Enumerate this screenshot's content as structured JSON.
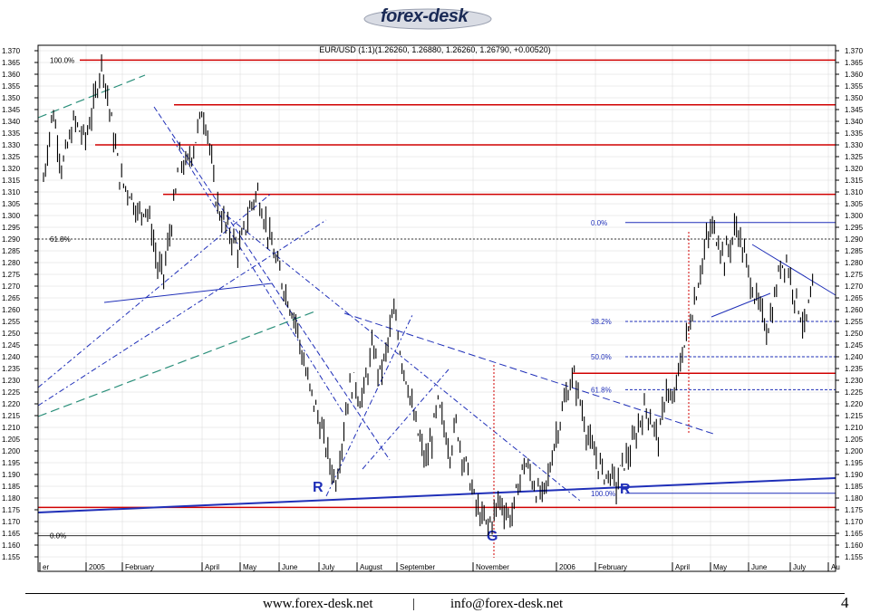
{
  "header": {
    "brand": "forex-desk"
  },
  "chart_data": {
    "type": "candlestick",
    "title": "EUR/USD (1:1)(1.26260, 1.26880, 1.26260, 1.26790, +0.00520)",
    "ylim": [
      1.155,
      1.37
    ],
    "yticks": [
      1.155,
      1.16,
      1.165,
      1.17,
      1.175,
      1.18,
      1.185,
      1.19,
      1.195,
      1.2,
      1.205,
      1.21,
      1.215,
      1.22,
      1.225,
      1.23,
      1.235,
      1.24,
      1.245,
      1.25,
      1.255,
      1.26,
      1.265,
      1.27,
      1.275,
      1.28,
      1.285,
      1.29,
      1.295,
      1.3,
      1.305,
      1.31,
      1.315,
      1.32,
      1.325,
      1.33,
      1.335,
      1.34,
      1.345,
      1.35,
      1.355,
      1.36,
      1.365,
      1.37
    ],
    "x_labels": [
      "er",
      "2005",
      "February",
      "April",
      "May",
      "June",
      "July",
      "August",
      "September",
      "November",
      "2006",
      "February",
      "April",
      "May",
      "June",
      "July",
      "Au"
    ],
    "price_path": [
      [
        0,
        1.315
      ],
      [
        6,
        1.345
      ],
      [
        12,
        1.32
      ],
      [
        20,
        1.34
      ],
      [
        27,
        1.332
      ],
      [
        32,
        1.345
      ],
      [
        38,
        1.366
      ],
      [
        44,
        1.34
      ],
      [
        50,
        1.315
      ],
      [
        56,
        1.31
      ],
      [
        62,
        1.3
      ],
      [
        66,
        1.305
      ],
      [
        70,
        1.295
      ],
      [
        74,
        1.278
      ],
      [
        78,
        1.275
      ],
      [
        82,
        1.292
      ],
      [
        86,
        1.31
      ],
      [
        88,
        1.325
      ],
      [
        92,
        1.32
      ],
      [
        98,
        1.33
      ],
      [
        103,
        1.345
      ],
      [
        107,
        1.335
      ],
      [
        111,
        1.31
      ],
      [
        115,
        1.3
      ],
      [
        119,
        1.295
      ],
      [
        123,
        1.29
      ],
      [
        127,
        1.285
      ],
      [
        131,
        1.295
      ],
      [
        135,
        1.305
      ],
      [
        139,
        1.31
      ],
      [
        143,
        1.3
      ],
      [
        147,
        1.29
      ],
      [
        151,
        1.28
      ],
      [
        156,
        1.27
      ],
      [
        160,
        1.262
      ],
      [
        164,
        1.255
      ],
      [
        168,
        1.24
      ],
      [
        172,
        1.228
      ],
      [
        176,
        1.22
      ],
      [
        180,
        1.21
      ],
      [
        184,
        1.2
      ],
      [
        188,
        1.19
      ],
      [
        190,
        1.188
      ],
      [
        194,
        1.205
      ],
      [
        198,
        1.225
      ],
      [
        202,
        1.23
      ],
      [
        206,
        1.22
      ],
      [
        210,
        1.232
      ],
      [
        214,
        1.245
      ],
      [
        218,
        1.232
      ],
      [
        222,
        1.24
      ],
      [
        226,
        1.255
      ],
      [
        229,
        1.258
      ],
      [
        232,
        1.24
      ],
      [
        236,
        1.23
      ],
      [
        240,
        1.215
      ],
      [
        244,
        1.205
      ],
      [
        248,
        1.195
      ],
      [
        252,
        1.205
      ],
      [
        256,
        1.22
      ],
      [
        260,
        1.21
      ],
      [
        264,
        1.2
      ],
      [
        268,
        1.212
      ],
      [
        272,
        1.198
      ],
      [
        276,
        1.19
      ],
      [
        280,
        1.178
      ],
      [
        284,
        1.172
      ],
      [
        288,
        1.168
      ],
      [
        292,
        1.172
      ],
      [
        296,
        1.18
      ],
      [
        300,
        1.174
      ],
      [
        304,
        1.172
      ],
      [
        308,
        1.185
      ],
      [
        312,
        1.195
      ],
      [
        316,
        1.19
      ],
      [
        320,
        1.183
      ],
      [
        324,
        1.18
      ],
      [
        328,
        1.19
      ],
      [
        332,
        1.205
      ],
      [
        336,
        1.215
      ],
      [
        340,
        1.225
      ],
      [
        344,
        1.232
      ],
      [
        348,
        1.222
      ],
      [
        352,
        1.21
      ],
      [
        356,
        1.2
      ],
      [
        360,
        1.195
      ],
      [
        364,
        1.19
      ],
      [
        368,
        1.19
      ],
      [
        372,
        1.185
      ],
      [
        376,
        1.195
      ],
      [
        380,
        1.198
      ],
      [
        384,
        1.205
      ],
      [
        388,
        1.215
      ],
      [
        392,
        1.218
      ],
      [
        396,
        1.21
      ],
      [
        400,
        1.205
      ],
      [
        404,
        1.228
      ],
      [
        408,
        1.218
      ],
      [
        410,
        1.225
      ],
      [
        414,
        1.24
      ],
      [
        418,
        1.25
      ],
      [
        422,
        1.262
      ],
      [
        426,
        1.275
      ],
      [
        430,
        1.288
      ],
      [
        434,
        1.295
      ],
      [
        438,
        1.29
      ],
      [
        442,
        1.282
      ],
      [
        446,
        1.288
      ],
      [
        450,
        1.296
      ],
      [
        454,
        1.285
      ],
      [
        458,
        1.275
      ],
      [
        462,
        1.265
      ],
      [
        466,
        1.258
      ],
      [
        470,
        1.252
      ],
      [
        474,
        1.262
      ],
      [
        478,
        1.278
      ],
      [
        482,
        1.282
      ],
      [
        486,
        1.27
      ],
      [
        490,
        1.262
      ],
      [
        494,
        1.252
      ],
      [
        497,
        1.262
      ],
      [
        500,
        1.268
      ]
    ],
    "levels": {
      "horizontal_red": [
        1.366,
        1.347,
        1.33,
        1.309,
        1.233,
        1.176
      ],
      "fib_dotted": [
        1.29
      ],
      "fib_labels_left": [
        "100.0%",
        "61.8%",
        "0.0%"
      ],
      "fib_labels_right": [
        "0.0%",
        "38.2%",
        "50.0%",
        "61.8%",
        "100.0%"
      ],
      "fib_right_values": [
        1.297,
        1.255,
        1.24,
        1.226,
        1.182
      ],
      "left_fib_values": [
        1.366,
        1.29,
        1.164
      ]
    },
    "annotations": [
      "R",
      "G",
      "R"
    ]
  },
  "footer": {
    "website": "www.forex-desk.net",
    "separator": "|",
    "email": "info@forex-desk.net",
    "page": "4"
  },
  "colors": {
    "red": "#d00000",
    "blue": "#1f2fb8",
    "teal": "#2a8f7a",
    "grid": "#d8d8d8"
  }
}
